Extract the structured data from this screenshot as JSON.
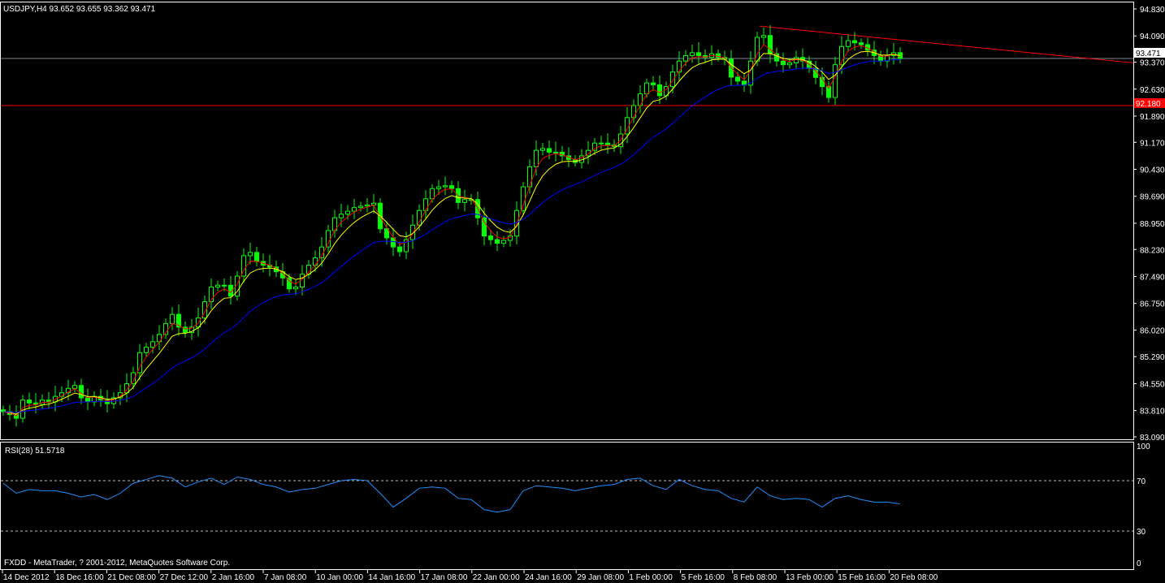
{
  "header": {
    "symbol_info": "USDJPY,H4  93.652 93.655 93.362 93.471"
  },
  "indicator": {
    "label": "RSI(28) 51.5718"
  },
  "footer": {
    "copyright": "FXDD - MetaTrader, ? 2001-2012, MetaQuotes Software Corp."
  },
  "colors": {
    "background": "#000000",
    "candles": "#00ff00",
    "fast_ma": "#ff0000",
    "mid_ma": "#ffff00",
    "slow_ma": "#0000ff",
    "rsi": "#1e90ff",
    "support_line": "#ff0000",
    "trendline": "#ff0000",
    "bid_line": "#778899"
  },
  "chart_data": [
    {
      "type": "candlestick",
      "symbol": "USDJPY",
      "timeframe": "H4",
      "ylim": [
        83.09,
        94.83
      ],
      "y_ticks": [
        "94.830",
        "94.090",
        "93.370",
        "92.630",
        "91.890",
        "91.170",
        "90.430",
        "89.690",
        "88.950",
        "88.230",
        "87.490",
        "86.750",
        "86.020",
        "85.290",
        "84.550",
        "83.810",
        "83.090"
      ],
      "x_ticks": [
        "14 Dec 2012",
        "18 Dec 16:00",
        "21 Dec 08:00",
        "27 Dec 12:00",
        "2 Jan 16:00",
        "7 Jan 08:00",
        "10 Jan 00:00",
        "14 Jan 16:00",
        "17 Jan 08:00",
        "22 Jan 00:00",
        "24 Jan 16:00",
        "29 Jan 08:00",
        "1 Feb 00:00",
        "5 Feb 16:00",
        "8 Feb 08:00",
        "13 Feb 00:00",
        "15 Feb 16:00",
        "20 Feb 08:00"
      ],
      "closes": [
        83.78,
        83.7,
        83.6,
        84.1,
        84.02,
        83.98,
        84.1,
        84.05,
        84.2,
        84.3,
        84.42,
        84.5,
        84.16,
        84.05,
        84.2,
        84.1,
        84.0,
        84.16,
        84.3,
        84.55,
        84.85,
        85.4,
        85.55,
        85.7,
        85.9,
        86.2,
        86.45,
        86.1,
        85.95,
        86.1,
        86.35,
        86.8,
        87.2,
        87.25,
        87.25,
        86.95,
        87.5,
        88.06,
        88.15,
        87.9,
        87.8,
        87.75,
        87.62,
        87.45,
        87.15,
        87.2,
        87.55,
        87.8,
        88.0,
        88.3,
        88.75,
        89.1,
        89.2,
        89.28,
        89.38,
        89.42,
        89.45,
        89.5,
        88.8,
        88.55,
        88.3,
        88.17,
        88.5,
        88.9,
        89.3,
        89.62,
        89.9,
        89.95,
        89.98,
        89.9,
        89.52,
        89.6,
        89.6,
        89.1,
        88.6,
        88.5,
        88.4,
        88.48,
        88.6,
        89.3,
        89.95,
        90.5,
        90.95,
        91.0,
        90.9,
        90.9,
        90.8,
        90.7,
        90.62,
        90.8,
        90.95,
        91.15,
        91.15,
        91.1,
        91.05,
        91.4,
        91.85,
        92.18,
        92.5,
        92.8,
        92.75,
        92.45,
        92.7,
        93.1,
        93.4,
        93.55,
        93.63,
        93.55,
        93.5,
        93.6,
        93.5,
        93.45,
        92.96,
        92.85,
        92.74,
        93.4,
        94.05,
        94.1,
        93.6,
        93.4,
        93.3,
        93.35,
        93.5,
        93.4,
        93.2,
        92.95,
        92.7,
        92.4,
        93.3,
        93.8,
        93.96,
        93.9,
        93.85,
        93.7,
        93.55,
        93.4,
        93.55,
        93.63,
        93.47
      ],
      "current_price": "93.471",
      "support_level": "92.180",
      "trendline": {
        "start_price": 94.36,
        "end_price": 93.35
      }
    },
    {
      "type": "line",
      "name": "RSI(28)",
      "ylim": [
        0,
        100
      ],
      "y_ticks": [
        "100",
        "70",
        "30",
        "0"
      ],
      "levels": [
        70,
        30
      ],
      "values": [
        68,
        60,
        63,
        62,
        62,
        60,
        57,
        59,
        55,
        60,
        68,
        71,
        74,
        72,
        65,
        69,
        72,
        67,
        73,
        71,
        67,
        65,
        61,
        63,
        64,
        67,
        70,
        71,
        70,
        60,
        49,
        56,
        64,
        65,
        64,
        56,
        55,
        47,
        45,
        47,
        62,
        66,
        65,
        64,
        62,
        64,
        66,
        67,
        71,
        72,
        66,
        63,
        71,
        66,
        63,
        62,
        56,
        53,
        65,
        58,
        55,
        56,
        55,
        49,
        56,
        58,
        55,
        53,
        53,
        51.57
      ]
    }
  ]
}
